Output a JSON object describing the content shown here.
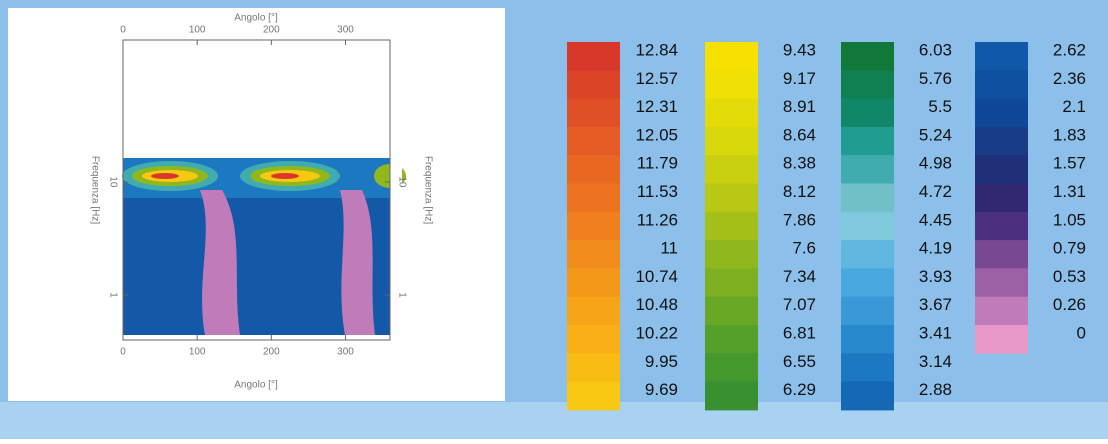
{
  "chart_data": {
    "type": "contour",
    "xlabel": "Angolo [°]",
    "ylabel": "Frequenza [Hz]",
    "xlim": [
      0,
      360
    ],
    "xticks": [
      0,
      100,
      200,
      300
    ],
    "ylim": [
      0.4,
      180
    ],
    "yticks": [
      1,
      10
    ],
    "yscale": "log",
    "levels": [
      12.84,
      12.57,
      12.31,
      12.05,
      11.79,
      11.53,
      11.26,
      11,
      10.74,
      10.48,
      10.22,
      9.95,
      9.69,
      9.43,
      9.17,
      8.91,
      8.64,
      8.38,
      8.12,
      7.86,
      7.6,
      7.34,
      7.07,
      6.81,
      6.55,
      6.29,
      6.03,
      5.76,
      5.5,
      5.24,
      4.98,
      4.72,
      4.45,
      4.19,
      3.93,
      3.67,
      3.41,
      3.14,
      2.88,
      2.62,
      2.36,
      2.1,
      1.83,
      1.57,
      1.31,
      1.05,
      0.79,
      0.53,
      0.26,
      0
    ],
    "level_colors": [
      "#d8382a",
      "#dc4428",
      "#e05026",
      "#e45c24",
      "#e86822",
      "#ec7420",
      "#f0801e",
      "#f28c1c",
      "#f4981a",
      "#f6a418",
      "#f8b016",
      "#f8bc14",
      "#f8c812",
      "#f8e000",
      "#f0e004",
      "#e4dc08",
      "#d8d80c",
      "#c8d010",
      "#b8c814",
      "#a4c018",
      "#90b81c",
      "#7cb020",
      "#68a824",
      "#54a028",
      "#44982c",
      "#389030",
      "#107838",
      "#108050",
      "#108868",
      "#209c90",
      "#40acb0",
      "#70c0c8",
      "#80c8dc",
      "#60b8e0",
      "#48a8e0",
      "#3898d8",
      "#2888cc",
      "#1c78c0",
      "#1468b4",
      "#1058a8",
      "#1050a0",
      "#104898",
      "#183c88",
      "#203078",
      "#302870",
      "#4c3080",
      "#784890",
      "#9c60a4",
      "#c07cb8",
      "#e898c8"
    ]
  }
}
